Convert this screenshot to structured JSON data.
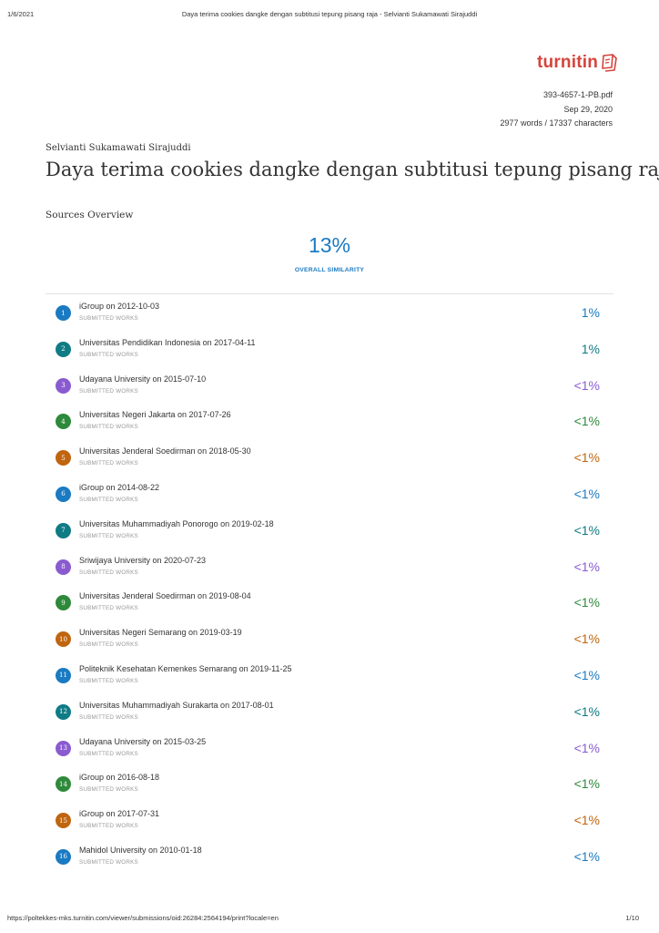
{
  "print_header": {
    "date": "1/6/2021",
    "title": "Daya terima cookies dangke dengan subtitusi tepung pisang raja - Selvianti Sukamawati Sirajuddi"
  },
  "logo": {
    "text": "turnitin"
  },
  "file_meta": {
    "filename": "393-4657-1-PB.pdf",
    "date": "Sep 29, 2020",
    "counts": "2977 words / 17337 characters"
  },
  "author": "Selvianti Sukamawati Sirajuddi",
  "document_title": "Daya terima cookies dangke dengan subtitusi tepung pisang raja",
  "sources_heading": "Sources Overview",
  "overall": {
    "percent": "13%",
    "label": "OVERALL SIMILARITY"
  },
  "colors": {
    "blue": "#1a7ac2",
    "teal": "#0f7b85",
    "purple": "#8a5bd0",
    "green": "#2e8a3a",
    "orange": "#c0650f",
    "brand": "#d6433b"
  },
  "sources": [
    {
      "num": "1",
      "name": "iGroup on 2012-10-03",
      "type": "SUBMITTED WORKS",
      "percent": "1%",
      "color": "#1a7ac2"
    },
    {
      "num": "2",
      "name": "Universitas Pendidikan Indonesia on 2017-04-11",
      "type": "SUBMITTED WORKS",
      "percent": "1%",
      "color": "#0f7b85"
    },
    {
      "num": "3",
      "name": "Udayana University on 2015-07-10",
      "type": "SUBMITTED WORKS",
      "percent": "<1%",
      "color": "#8a5bd0"
    },
    {
      "num": "4",
      "name": "Universitas Negeri Jakarta on 2017-07-26",
      "type": "SUBMITTED WORKS",
      "percent": "<1%",
      "color": "#2e8a3a"
    },
    {
      "num": "5",
      "name": "Universitas Jenderal Soedirman on 2018-05-30",
      "type": "SUBMITTED WORKS",
      "percent": "<1%",
      "color": "#c0650f"
    },
    {
      "num": "6",
      "name": "iGroup on 2014-08-22",
      "type": "SUBMITTED WORKS",
      "percent": "<1%",
      "color": "#1a7ac2"
    },
    {
      "num": "7",
      "name": "Universitas Muhammadiyah Ponorogo on 2019-02-18",
      "type": "SUBMITTED WORKS",
      "percent": "<1%",
      "color": "#0f7b85"
    },
    {
      "num": "8",
      "name": "Sriwijaya University on 2020-07-23",
      "type": "SUBMITTED WORKS",
      "percent": "<1%",
      "color": "#8a5bd0"
    },
    {
      "num": "9",
      "name": "Universitas Jenderal Soedirman on 2019-08-04",
      "type": "SUBMITTED WORKS",
      "percent": "<1%",
      "color": "#2e8a3a"
    },
    {
      "num": "10",
      "name": "Universitas Negeri Semarang on 2019-03-19",
      "type": "SUBMITTED WORKS",
      "percent": "<1%",
      "color": "#c0650f"
    },
    {
      "num": "11",
      "name": "Politeknik Kesehatan Kemenkes Semarang on 2019-11-25",
      "type": "SUBMITTED WORKS",
      "percent": "<1%",
      "color": "#1a7ac2"
    },
    {
      "num": "12",
      "name": "Universitas Muhammadiyah Surakarta on 2017-08-01",
      "type": "SUBMITTED WORKS",
      "percent": "<1%",
      "color": "#0f7b85"
    },
    {
      "num": "13",
      "name": "Udayana University on 2015-03-25",
      "type": "SUBMITTED WORKS",
      "percent": "<1%",
      "color": "#8a5bd0"
    },
    {
      "num": "14",
      "name": "iGroup on 2016-08-18",
      "type": "SUBMITTED WORKS",
      "percent": "<1%",
      "color": "#2e8a3a"
    },
    {
      "num": "15",
      "name": "iGroup on 2017-07-31",
      "type": "SUBMITTED WORKS",
      "percent": "<1%",
      "color": "#c0650f"
    },
    {
      "num": "16",
      "name": "Mahidol University on 2010-01-18",
      "type": "SUBMITTED WORKS",
      "percent": "<1%",
      "color": "#1a7ac2"
    }
  ],
  "print_footer": {
    "url": "https://poltekkes-mks.turnitin.com/viewer/submissions/oid:26284:2564194/print?locale=en",
    "page": "1/10"
  }
}
